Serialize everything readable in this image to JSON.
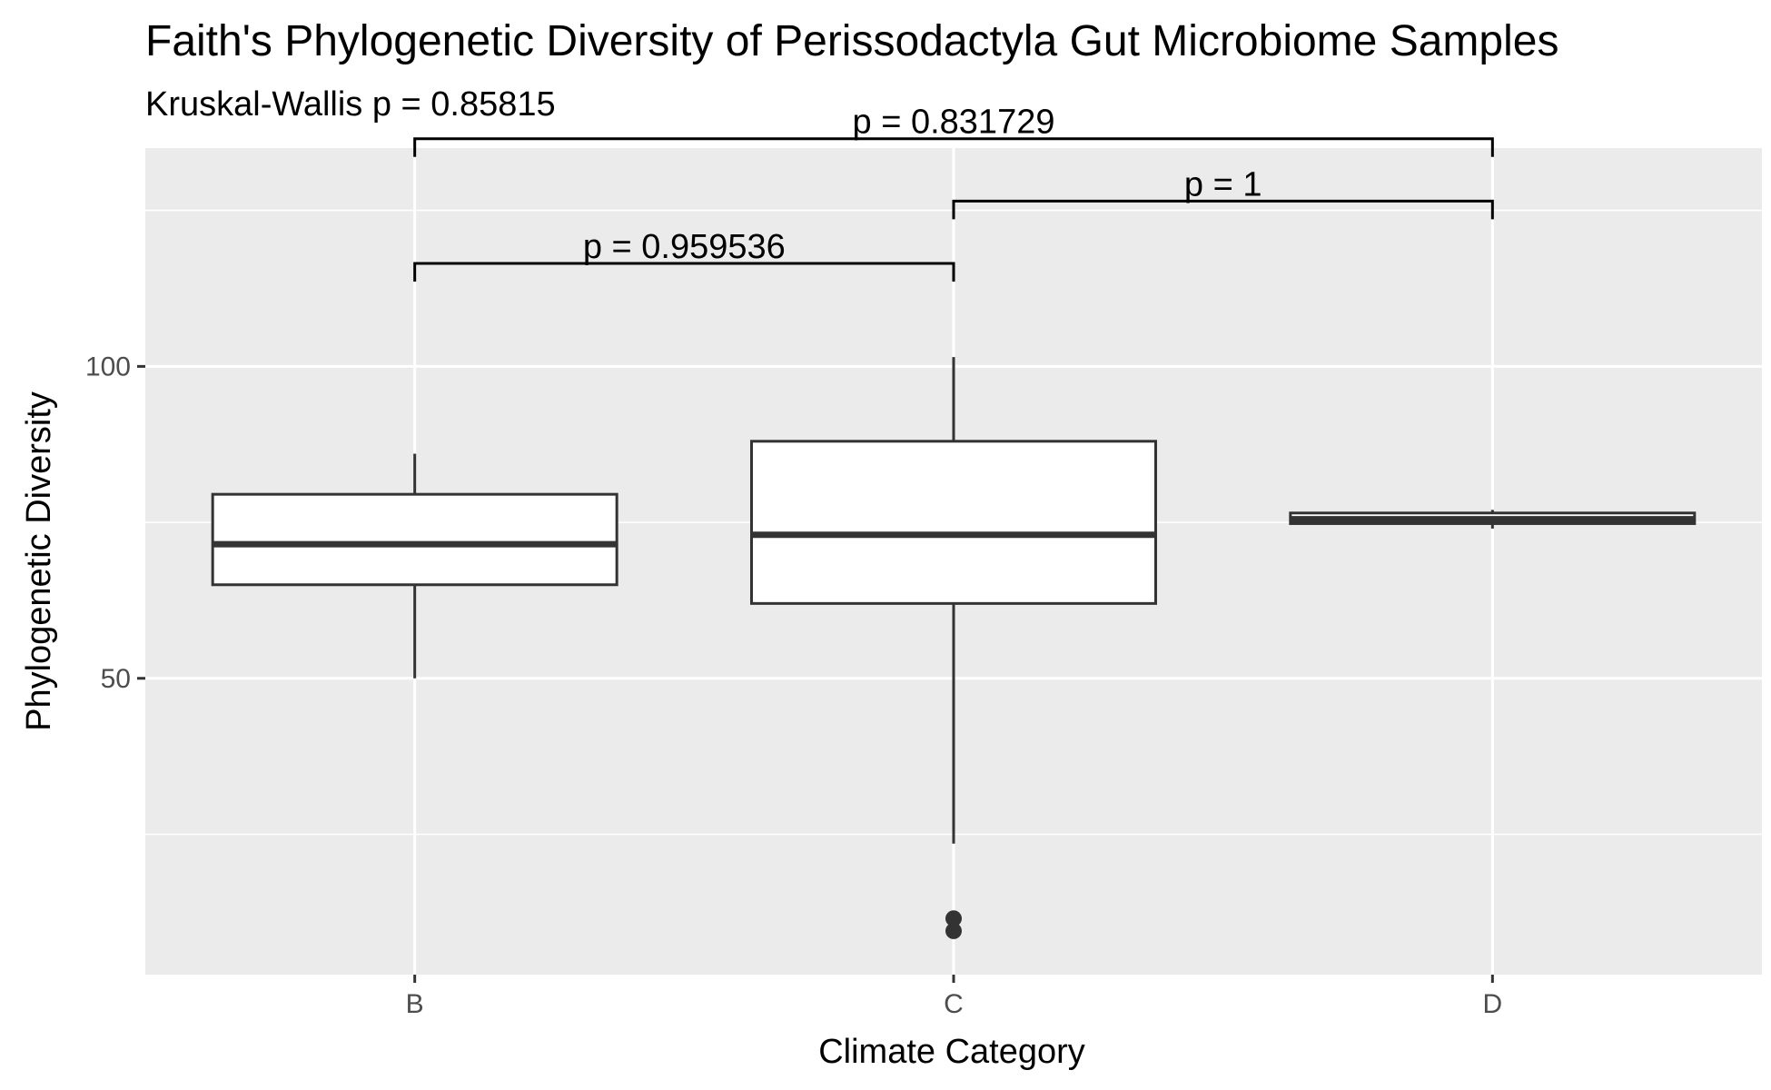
{
  "chart_data": {
    "type": "box",
    "title": "Faith's Phylogenetic Diversity of Perissodactyla Gut Microbiome Samples",
    "subtitle": "Kruskal-Wallis p = 0.85815",
    "xlabel": "Climate Category",
    "ylabel": "Phylogenetic Diversity",
    "categories": [
      "B",
      "C",
      "D"
    ],
    "ylim": [
      2.5,
      135
    ],
    "y_ticks": [
      50,
      100
    ],
    "y_minor_ticks": [
      25,
      75,
      125
    ],
    "grid": true,
    "boxes": [
      {
        "category": "B",
        "min": 50,
        "q1": 65,
        "median": 71.5,
        "q3": 79.5,
        "max": 86,
        "outliers": []
      },
      {
        "category": "C",
        "min": 23.5,
        "q1": 62,
        "median": 73,
        "q3": 88,
        "max": 101.5,
        "outliers": [
          11.5,
          9.5
        ]
      },
      {
        "category": "D",
        "min": 74,
        "q1": 74.8,
        "median": 75.5,
        "q3": 76.5,
        "max": 77,
        "outliers": []
      }
    ],
    "comparisons": [
      {
        "groups": [
          "B",
          "C"
        ],
        "label": "p = 0.959536",
        "y": 116.5
      },
      {
        "groups": [
          "C",
          "D"
        ],
        "label": "p = 1",
        "y": 126.5
      },
      {
        "groups": [
          "B",
          "D"
        ],
        "label": "p = 0.831729",
        "y": 136.5
      }
    ]
  }
}
